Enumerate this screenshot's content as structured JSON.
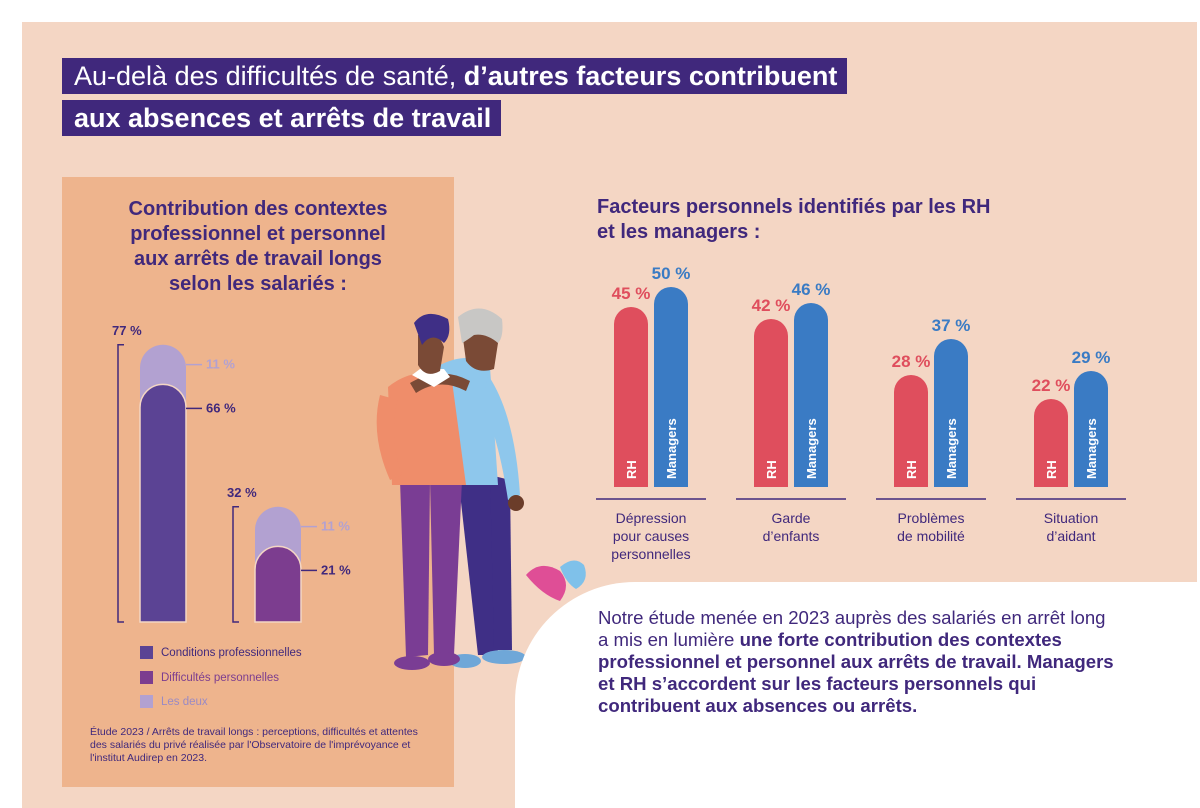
{
  "title": {
    "line1_regular": "Au-delà des difficultés de santé, ",
    "line1_bold": "d’autres facteurs contribuent",
    "line2": "aux absences et arrêts de travail"
  },
  "left_panel": {
    "title": [
      "Contribution des contextes",
      "professionnel et personnel",
      "aux arrêts de travail longs",
      "selon les salariés :"
    ],
    "legend": [
      {
        "label": "Conditions professionnelles",
        "color": "#5b4394"
      },
      {
        "label": "Difficultés personnelles",
        "color": "#7c3d8f"
      },
      {
        "label": "Les deux",
        "color": "#b2a1d1"
      }
    ],
    "footnote": "Étude 2023 / Arrêts de travail longs : perceptions, difficultés et attentes des salariés du privé réalisée par l'Observatoire de l'imprévoyance et l'institut Audirep en 2023."
  },
  "right_panel": {
    "title": [
      "Facteurs personnels identifiés par les RH",
      "et les managers :"
    ]
  },
  "bubble": {
    "text_regular": "Notre étude menée en 2023 auprès des salariés en arrêt long a mis en lumière ",
    "text_bold": "une forte contribution des contextes professionnel et personnel aux arrêts de travail. Managers et RH s’accordent sur les facteurs personnels qui contribuent aux absences ou arrêts."
  },
  "chart_data": [
    {
      "type": "bar",
      "stacked": true,
      "title": "Contribution des contextes professionnel et personnel aux arrêts de travail longs selon les salariés :",
      "bars": [
        {
          "total_label": "77 %",
          "total": 77,
          "segments": [
            {
              "series": "Conditions professionnelles",
              "value": 66,
              "label": "66 %",
              "color": "#5b4394"
            },
            {
              "series": "Les deux",
              "value": 11,
              "label": "11 %",
              "color": "#b2a1d1"
            }
          ]
        },
        {
          "total_label": "32 %",
          "total": 32,
          "segments": [
            {
              "series": "Difficultés personnelles",
              "value": 21,
              "label": "21 %",
              "color": "#7c3d8f"
            },
            {
              "series": "Les deux",
              "value": 11,
              "label": "11 %",
              "color": "#b2a1d1"
            }
          ]
        }
      ]
    },
    {
      "type": "bar",
      "title": "Facteurs personnels identifiés par les RH et les managers :",
      "categories": [
        [
          "Dépression",
          "pour causes",
          "personnelles"
        ],
        [
          "Garde",
          "d’enfants"
        ],
        [
          "Problèmes",
          "de mobilité"
        ],
        [
          "Situation",
          "d’aidant"
        ]
      ],
      "series": [
        {
          "name": "RH",
          "color": "#df4e5d",
          "values": [
            45,
            42,
            28,
            22
          ],
          "labels": [
            "45 %",
            "42 %",
            "28 %",
            "22 %"
          ]
        },
        {
          "name": "Managers",
          "color": "#3a7bc4",
          "values": [
            50,
            46,
            37,
            29
          ],
          "labels": [
            "50 %",
            "46 %",
            "37 %",
            "29 %"
          ]
        }
      ]
    }
  ]
}
